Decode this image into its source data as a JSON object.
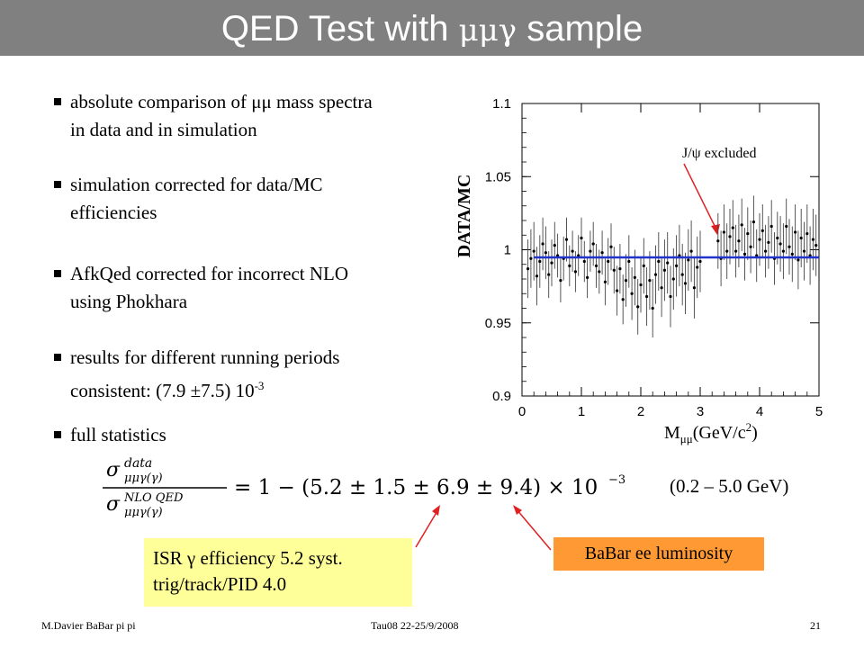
{
  "slide": {
    "title_prefix": "QED Test with ",
    "title_greek": "μμγ",
    "title_suffix": " sample"
  },
  "bullets": [
    {
      "line1": "absolute comparison of μμ mass spectra",
      "line2": "in data and in simulation"
    },
    {
      "line1": "simulation corrected for data/MC",
      "line2": "efficiencies"
    },
    {
      "line1": "AfkQed corrected for incorrect NLO",
      "line2": "using Phokhara"
    },
    {
      "line1": "results for different running periods",
      "line2": "consistent:      (7.9 ±7.5) 10",
      "line2_sup": "-3"
    },
    {
      "line1": "full statistics",
      "line2": ""
    }
  ],
  "plot": {
    "ylabel": "DATA/MC",
    "xlabel": "M",
    "xlabel_sub": "μμ",
    "xlabel_unit": "(GeV/c",
    "xlabel_unit_sup": "2",
    "xlabel_close": ")",
    "annotation": "J/ψ excluded",
    "xticks": [
      "0",
      "1",
      "2",
      "3",
      "4",
      "5"
    ],
    "yticks": [
      "0.9",
      "0.95",
      "1",
      "1.05",
      "1.1"
    ],
    "fit_color": "#2233cc",
    "fit_value": 0.9948
  },
  "chart_data": {
    "type": "scatter",
    "xlabel": "Mμμ(GeV/c2)",
    "ylabel": "DATA/MC",
    "xlim": [
      0,
      5
    ],
    "ylim": [
      0.9,
      1.1
    ],
    "fit_line": 0.9948,
    "x": [
      0.1,
      0.15,
      0.2,
      0.25,
      0.3,
      0.35,
      0.4,
      0.45,
      0.5,
      0.55,
      0.6,
      0.65,
      0.7,
      0.75,
      0.8,
      0.85,
      0.9,
      0.95,
      1.0,
      1.05,
      1.1,
      1.15,
      1.2,
      1.25,
      1.3,
      1.35,
      1.4,
      1.45,
      1.5,
      1.55,
      1.6,
      1.65,
      1.7,
      1.75,
      1.8,
      1.85,
      1.9,
      1.95,
      2.0,
      2.05,
      2.1,
      2.15,
      2.2,
      2.25,
      2.3,
      2.35,
      2.4,
      2.45,
      2.5,
      2.55,
      2.6,
      2.65,
      2.7,
      2.75,
      2.8,
      2.85,
      2.9,
      2.95,
      3.0,
      3.3,
      3.35,
      3.4,
      3.45,
      3.5,
      3.55,
      3.6,
      3.65,
      3.7,
      3.75,
      3.8,
      3.85,
      3.9,
      3.95,
      4.0,
      4.05,
      4.1,
      4.15,
      4.2,
      4.25,
      4.3,
      4.35,
      4.4,
      4.45,
      4.5,
      4.55,
      4.6,
      4.65,
      4.7,
      4.75,
      4.8,
      4.85,
      4.9,
      4.95
    ],
    "y": [
      0.987,
      0.994,
      0.999,
      0.982,
      0.992,
      1.004,
      0.998,
      0.983,
      0.991,
      1.003,
      0.996,
      0.979,
      0.994,
      1.007,
      0.989,
      0.999,
      0.985,
      0.996,
      1.008,
      0.992,
      0.981,
      0.999,
      1.004,
      0.989,
      0.985,
      0.998,
      0.978,
      0.992,
      1.002,
      0.986,
      0.972,
      0.987,
      0.966,
      0.979,
      0.992,
      0.97,
      0.981,
      0.961,
      0.976,
      0.989,
      0.968,
      0.979,
      0.96,
      0.983,
      0.992,
      0.974,
      0.986,
      0.991,
      0.968,
      0.98,
      0.989,
      0.996,
      0.983,
      0.977,
      0.993,
      0.999,
      0.974,
      0.988,
      0.992,
      1.006,
      0.994,
      1.012,
      0.999,
      1.009,
      1.015,
      0.999,
      1.006,
      1.017,
      0.997,
      1.011,
      1.002,
      1.019,
      0.996,
      1.007,
      1.013,
      0.999,
      1.005,
      1.016,
      0.994,
      1.008,
      1.004,
      0.999,
      1.016,
      1.002,
      0.997,
      1.012,
      0.993,
      1.008,
      0.999,
      1.011,
      0.996,
      1.007,
      1.003
    ],
    "yerr": [
      0.02,
      0.02,
      0.02,
      0.02,
      0.018,
      0.018,
      0.018,
      0.016,
      0.016,
      0.016,
      0.015,
      0.015,
      0.015,
      0.015,
      0.014,
      0.014,
      0.014,
      0.014,
      0.014,
      0.014,
      0.014,
      0.014,
      0.015,
      0.015,
      0.015,
      0.015,
      0.016,
      0.016,
      0.016,
      0.016,
      0.017,
      0.017,
      0.017,
      0.018,
      0.018,
      0.018,
      0.019,
      0.019,
      0.019,
      0.019,
      0.02,
      0.02,
      0.02,
      0.02,
      0.02,
      0.02,
      0.021,
      0.021,
      0.021,
      0.021,
      0.021,
      0.021,
      0.021,
      0.021,
      0.021,
      0.021,
      0.021,
      0.021,
      0.021,
      0.019,
      0.019,
      0.019,
      0.019,
      0.019,
      0.019,
      0.018,
      0.018,
      0.018,
      0.018,
      0.018,
      0.018,
      0.018,
      0.018,
      0.018,
      0.018,
      0.018,
      0.018,
      0.018,
      0.018,
      0.018,
      0.019,
      0.019,
      0.019,
      0.019,
      0.019,
      0.019,
      0.02,
      0.02,
      0.02,
      0.02,
      0.02,
      0.021,
      0.021
    ]
  },
  "formula": {
    "sigma": "σ",
    "num_sup": "data",
    "num_sub": "μμγ(γ)",
    "den_sup": "NLO  QED",
    "den_sub": "μμγ(γ)",
    "rhs": "= 1 − (5.2 ± 1.5 ± 6.9 ± 9.4) × 10",
    "rhs_exp": "−3"
  },
  "range_text": "(0.2 – 5.0 GeV)",
  "boxes": {
    "isr_line1": "ISR γ efficiency 5.2   syst.",
    "isr_line2": "trig/track/PID   4.0",
    "lumi": "BaBar ee luminosity",
    "box_yellow_color": "#ffff99",
    "box_orange_color": "#ff9933",
    "arrow_color": "#e02020"
  },
  "footer": {
    "author": "M.Davier    BaBar pi pi",
    "conference": "Tau08  22-25/9/2008",
    "page": "21"
  }
}
